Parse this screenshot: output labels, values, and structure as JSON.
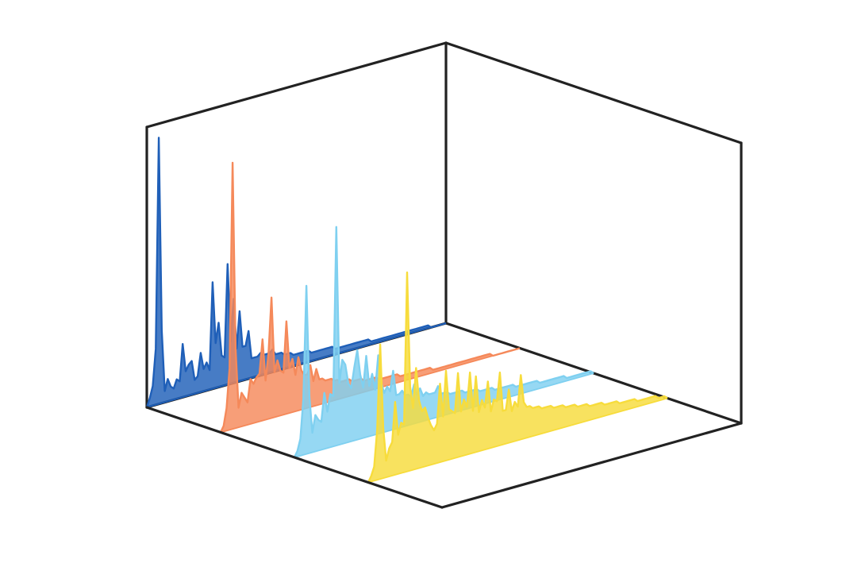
{
  "chart_data": {
    "type": "area",
    "projection": "3d-waterfall",
    "title": "",
    "xlabel": "",
    "ylabel": "",
    "zlabel": "",
    "grid": false,
    "axes": false,
    "legend": "none",
    "depth_range": [
      0,
      4
    ],
    "x_range": [
      0,
      100
    ],
    "y_range": [
      0,
      1
    ],
    "series": [
      {
        "depth": 0,
        "color": "#1f5fb8",
        "x": [
          0,
          1,
          2,
          3,
          4,
          5,
          6,
          7,
          8,
          9,
          10,
          11,
          12,
          13,
          14,
          15,
          16,
          17,
          18,
          19,
          20,
          21,
          22,
          23,
          24,
          25,
          26,
          27,
          28,
          29,
          30,
          31,
          32,
          33,
          34,
          35,
          36,
          37,
          38,
          39,
          40,
          41,
          42,
          43,
          44,
          45,
          46,
          47,
          48,
          49,
          50,
          51,
          52,
          53,
          54,
          55,
          56,
          57,
          58,
          59,
          60,
          61,
          62,
          63,
          64,
          65,
          66,
          67,
          68,
          69,
          70,
          71,
          72,
          73,
          74,
          75,
          76,
          77,
          78,
          79,
          80,
          81,
          82,
          83,
          84,
          85,
          86,
          87,
          88,
          89,
          90,
          91,
          92,
          93,
          94,
          95,
          96,
          97,
          98,
          99,
          100
        ],
        "y": [
          0,
          0.03,
          0.07,
          0.2,
          0.95,
          0.26,
          0.04,
          0.08,
          0.05,
          0.04,
          0.07,
          0.06,
          0.19,
          0.09,
          0.11,
          0.12,
          0.05,
          0.06,
          0.14,
          0.08,
          0.1,
          0.07,
          0.38,
          0.16,
          0.23,
          0.11,
          0.1,
          0.43,
          0.15,
          0.3,
          0.12,
          0.25,
          0.12,
          0.12,
          0.17,
          0.07,
          0.07,
          0.07,
          0.08,
          0.07,
          0.07,
          0.07,
          0.08,
          0.06,
          0.06,
          0.06,
          0.05,
          0.05,
          0.05,
          0.04,
          0.04,
          0.04,
          0.04,
          0.04,
          0.04,
          0.03,
          0.03,
          0.03,
          0.03,
          0.03,
          0.03,
          0.03,
          0.03,
          0.02,
          0.02,
          0.02,
          0.02,
          0.02,
          0.02,
          0.02,
          0.02,
          0.02,
          0.02,
          0.02,
          0.02,
          0.01,
          0.01,
          0.01,
          0.01,
          0.01,
          0.01,
          0.01,
          0.01,
          0.01,
          0.01,
          0.01,
          0.01,
          0.01,
          0.01,
          0.01,
          0.01,
          0.01,
          0.01,
          0.01,
          0.01,
          0,
          0,
          0,
          0,
          0,
          0
        ]
      },
      {
        "depth": 1,
        "color": "#f5895a",
        "x": [
          0,
          1,
          2,
          3,
          4,
          5,
          6,
          7,
          8,
          9,
          10,
          11,
          12,
          13,
          14,
          15,
          16,
          17,
          18,
          19,
          20,
          21,
          22,
          23,
          24,
          25,
          26,
          27,
          28,
          29,
          30,
          31,
          32,
          33,
          34,
          35,
          36,
          37,
          38,
          39,
          40,
          41,
          42,
          43,
          44,
          45,
          46,
          47,
          48,
          49,
          50,
          51,
          52,
          53,
          54,
          55,
          56,
          57,
          58,
          59,
          60,
          61,
          62,
          63,
          64,
          65,
          66,
          67,
          68,
          69,
          70,
          71,
          72,
          73,
          74,
          75,
          76,
          77,
          78,
          79,
          80,
          81,
          82,
          83,
          84,
          85,
          86,
          87,
          88,
          89,
          90,
          91,
          92,
          93,
          94,
          95,
          96,
          97,
          98,
          99,
          100
        ],
        "y": [
          0,
          0.02,
          0.08,
          0.22,
          0.95,
          0.28,
          0.07,
          0.12,
          0.1,
          0.08,
          0.16,
          0.14,
          0.16,
          0.17,
          0.29,
          0.14,
          0.23,
          0.43,
          0.16,
          0.2,
          0.16,
          0.15,
          0.33,
          0.16,
          0.19,
          0.13,
          0.19,
          0.14,
          0.12,
          0.12,
          0.15,
          0.09,
          0.13,
          0.09,
          0.09,
          0.08,
          0.08,
          0.08,
          0.07,
          0.07,
          0.06,
          0.06,
          0.06,
          0.06,
          0.05,
          0.05,
          0.05,
          0.05,
          0.04,
          0.04,
          0.04,
          0.04,
          0.04,
          0.03,
          0.03,
          0.03,
          0.03,
          0.03,
          0.03,
          0.03,
          0.02,
          0.02,
          0.02,
          0.02,
          0.02,
          0.02,
          0.02,
          0.02,
          0.02,
          0.02,
          0.02,
          0.01,
          0.01,
          0.01,
          0.01,
          0.01,
          0.01,
          0.01,
          0.01,
          0.01,
          0.01,
          0.01,
          0.01,
          0.01,
          0.01,
          0.01,
          0.01,
          0.01,
          0.01,
          0.01,
          0.01,
          0,
          0,
          0,
          0,
          0,
          0,
          0,
          0,
          0,
          0
        ]
      },
      {
        "depth": 2,
        "color": "#7fd0f0",
        "x": [
          0,
          1,
          2,
          3,
          4,
          5,
          6,
          7,
          8,
          9,
          10,
          11,
          12,
          13,
          14,
          15,
          16,
          17,
          18,
          19,
          20,
          21,
          22,
          23,
          24,
          25,
          26,
          27,
          28,
          29,
          30,
          31,
          32,
          33,
          34,
          35,
          36,
          37,
          38,
          39,
          40,
          41,
          42,
          43,
          44,
          45,
          46,
          47,
          48,
          49,
          50,
          51,
          52,
          53,
          54,
          55,
          56,
          57,
          58,
          59,
          60,
          61,
          62,
          63,
          64,
          65,
          66,
          67,
          68,
          69,
          70,
          71,
          72,
          73,
          74,
          75,
          76,
          77,
          78,
          79,
          80,
          81,
          82,
          83,
          84,
          85,
          86,
          87,
          88,
          89,
          90,
          91,
          92,
          93,
          94,
          95,
          96,
          97,
          98,
          99,
          100
        ],
        "y": [
          0,
          0.02,
          0.06,
          0.2,
          0.6,
          0.2,
          0.07,
          0.13,
          0.11,
          0.1,
          0.2,
          0.13,
          0.19,
          0.18,
          0.78,
          0.22,
          0.3,
          0.28,
          0.21,
          0.19,
          0.26,
          0.32,
          0.23,
          0.18,
          0.29,
          0.18,
          0.22,
          0.16,
          0.28,
          0.18,
          0.14,
          0.16,
          0.14,
          0.21,
          0.12,
          0.12,
          0.13,
          0.11,
          0.11,
          0.1,
          0.14,
          0.1,
          0.12,
          0.09,
          0.1,
          0.09,
          0.09,
          0.09,
          0.11,
          0.08,
          0.08,
          0.08,
          0.07,
          0.07,
          0.07,
          0.07,
          0.07,
          0.06,
          0.06,
          0.06,
          0.06,
          0.06,
          0.05,
          0.05,
          0.05,
          0.05,
          0.05,
          0.04,
          0.04,
          0.04,
          0.04,
          0.04,
          0.04,
          0.04,
          0.03,
          0.03,
          0.03,
          0.03,
          0.03,
          0.03,
          0.03,
          0.03,
          0.02,
          0.02,
          0.02,
          0.02,
          0.02,
          0.02,
          0.02,
          0.02,
          0.02,
          0.01,
          0.01,
          0.01,
          0.01,
          0.01,
          0.01,
          0.01,
          0.01,
          0.01,
          0
        ]
      },
      {
        "depth": 3,
        "color": "#f7dc3c",
        "x": [
          0,
          1,
          2,
          3,
          4,
          5,
          6,
          7,
          8,
          9,
          10,
          11,
          12,
          13,
          14,
          15,
          16,
          17,
          18,
          19,
          20,
          21,
          22,
          23,
          24,
          25,
          26,
          27,
          28,
          29,
          30,
          31,
          32,
          33,
          34,
          35,
          36,
          37,
          38,
          39,
          40,
          41,
          42,
          43,
          44,
          45,
          46,
          47,
          48,
          49,
          50,
          51,
          52,
          53,
          54,
          55,
          56,
          57,
          58,
          59,
          60,
          61,
          62,
          63,
          64,
          65,
          66,
          67,
          68,
          69,
          70,
          71,
          72,
          73,
          74,
          75,
          76,
          77,
          78,
          79,
          80,
          81,
          82,
          83,
          84,
          85,
          86,
          87,
          88,
          89,
          90,
          91,
          92,
          93,
          94,
          95,
          96,
          97,
          98,
          99,
          100
        ],
        "y": [
          0,
          0.02,
          0.05,
          0.18,
          0.48,
          0.18,
          0.06,
          0.1,
          0.12,
          0.26,
          0.14,
          0.18,
          0.17,
          0.71,
          0.3,
          0.22,
          0.36,
          0.24,
          0.2,
          0.21,
          0.17,
          0.14,
          0.12,
          0.14,
          0.28,
          0.16,
          0.32,
          0.18,
          0.17,
          0.16,
          0.3,
          0.16,
          0.2,
          0.17,
          0.29,
          0.15,
          0.27,
          0.14,
          0.18,
          0.15,
          0.24,
          0.13,
          0.17,
          0.16,
          0.26,
          0.12,
          0.12,
          0.19,
          0.11,
          0.14,
          0.12,
          0.23,
          0.13,
          0.11,
          0.11,
          0.1,
          0.1,
          0.1,
          0.09,
          0.09,
          0.09,
          0.09,
          0.08,
          0.08,
          0.08,
          0.08,
          0.07,
          0.07,
          0.07,
          0.07,
          0.06,
          0.06,
          0.06,
          0.06,
          0.05,
          0.05,
          0.05,
          0.05,
          0.05,
          0.04,
          0.04,
          0.04,
          0.04,
          0.04,
          0.03,
          0.03,
          0.03,
          0.03,
          0.03,
          0.03,
          0.02,
          0.02,
          0.02,
          0.02,
          0.02,
          0.02,
          0.02,
          0.01,
          0.01,
          0.01,
          0
        ]
      }
    ]
  }
}
